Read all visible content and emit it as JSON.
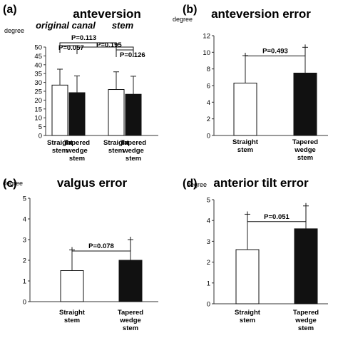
{
  "colors": {
    "bar_open": "#ffffff",
    "bar_filled": "#111111",
    "axis": "#333333"
  },
  "chart_data": [
    {
      "panel": "(a)",
      "type": "bar",
      "title": "anteversion",
      "group_labels": [
        "original canal",
        "stem"
      ],
      "ylabel": "degree",
      "ylim": [
        0,
        50
      ],
      "yticks": [
        "0",
        "5",
        "10",
        "15",
        "20",
        "25",
        "30",
        "35",
        "40",
        "45",
        "50"
      ],
      "categories": [
        "Straight stem",
        "Tapered wedge stem",
        "Straight stem",
        "Tapered wedge stem"
      ],
      "values": [
        28.5,
        24.2,
        26.0,
        23.3
      ],
      "error": [
        9.0,
        9.5,
        10.0,
        10.2
      ],
      "fill": [
        "open",
        "filled",
        "open",
        "filled"
      ],
      "annotations": [
        {
          "text": "P=0.113",
          "between": [
            0,
            2
          ]
        },
        {
          "text": "P=0.195",
          "between": [
            1,
            3
          ]
        },
        {
          "text": "P=0.057",
          "between": [
            0,
            1
          ]
        },
        {
          "text": "P=0.126",
          "between": [
            2,
            3
          ]
        }
      ]
    },
    {
      "panel": "(b)",
      "type": "bar",
      "title": "anteversion error",
      "ylabel": "degree",
      "ylim": [
        0,
        12
      ],
      "yticks": [
        "0",
        "2",
        "4",
        "6",
        "8",
        "10",
        "12"
      ],
      "categories": [
        "Straight stem",
        "Tapered wedge stem"
      ],
      "values": [
        6.3,
        7.5
      ],
      "error": [
        3.3,
        3.1
      ],
      "fill": [
        "open",
        "filled"
      ],
      "annotations": [
        {
          "text": "P=0.493",
          "between": [
            0,
            1
          ]
        }
      ]
    },
    {
      "panel": "(c)",
      "type": "bar",
      "title": "valgus error",
      "ylabel": "degree",
      "ylim": [
        0,
        5
      ],
      "yticks": [
        "0",
        "1",
        "2",
        "3",
        "4",
        "5"
      ],
      "categories": [
        "Straight stem",
        "Tapered wedge stem"
      ],
      "values": [
        1.5,
        2.0
      ],
      "error": [
        1.0,
        1.0
      ],
      "fill": [
        "open",
        "filled"
      ],
      "annotations": [
        {
          "text": "P=0.078",
          "between": [
            0,
            1
          ]
        }
      ]
    },
    {
      "panel": "(d)",
      "type": "bar",
      "title": "anterior tilt error",
      "ylabel": "degree",
      "ylim": [
        0,
        5
      ],
      "yticks": [
        "0",
        "1",
        "2",
        "3",
        "4",
        "5"
      ],
      "categories": [
        "Straight stem",
        "Tapered wedge stem"
      ],
      "values": [
        2.6,
        3.6
      ],
      "error": [
        1.7,
        1.1
      ],
      "fill": [
        "open",
        "filled"
      ],
      "annotations": [
        {
          "text": "P=0.051",
          "between": [
            0,
            1
          ]
        }
      ]
    }
  ]
}
